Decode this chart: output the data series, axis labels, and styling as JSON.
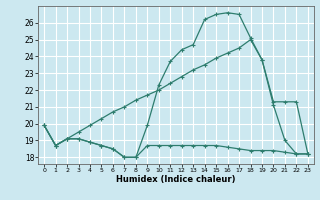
{
  "xlabel": "Humidex (Indice chaleur)",
  "bg_color": "#cce8f0",
  "grid_color": "#ffffff",
  "line_color": "#2e7d6e",
  "xlim": [
    -0.5,
    23.5
  ],
  "ylim": [
    17.6,
    27.0
  ],
  "xticks": [
    0,
    1,
    2,
    3,
    4,
    5,
    6,
    7,
    8,
    9,
    10,
    11,
    12,
    13,
    14,
    15,
    16,
    17,
    18,
    19,
    20,
    21,
    22,
    23
  ],
  "yticks": [
    18,
    19,
    20,
    21,
    22,
    23,
    24,
    25,
    26
  ],
  "series1_x": [
    0,
    1,
    2,
    3,
    4,
    5,
    6,
    7,
    8,
    9,
    10,
    11,
    12,
    13,
    14,
    15,
    16,
    17,
    18,
    19,
    20,
    21,
    22,
    23
  ],
  "series1_y": [
    19.9,
    18.7,
    19.1,
    19.1,
    18.9,
    18.7,
    18.5,
    18.0,
    18.0,
    19.9,
    22.3,
    23.7,
    24.4,
    24.7,
    26.2,
    26.5,
    26.6,
    26.5,
    25.1,
    23.8,
    21.1,
    19.0,
    18.2,
    18.2
  ],
  "series2_x": [
    0,
    1,
    2,
    3,
    4,
    5,
    6,
    7,
    8,
    9,
    10,
    11,
    12,
    13,
    14,
    15,
    16,
    17,
    18,
    19,
    20,
    21,
    22,
    23
  ],
  "series2_y": [
    19.9,
    18.7,
    19.1,
    19.1,
    18.9,
    18.7,
    18.5,
    18.0,
    18.0,
    18.7,
    18.7,
    18.7,
    18.7,
    18.7,
    18.7,
    18.7,
    18.6,
    18.5,
    18.4,
    18.4,
    18.4,
    18.3,
    18.2,
    18.2
  ],
  "series3_x": [
    0,
    1,
    2,
    3,
    4,
    5,
    6,
    7,
    8,
    9,
    10,
    11,
    12,
    13,
    14,
    15,
    16,
    17,
    18,
    19,
    20,
    21,
    22,
    23
  ],
  "series3_y": [
    19.9,
    18.7,
    19.1,
    19.5,
    19.9,
    20.3,
    20.7,
    21.0,
    21.4,
    21.7,
    22.0,
    22.4,
    22.8,
    23.2,
    23.5,
    23.9,
    24.2,
    24.5,
    25.0,
    23.8,
    21.3,
    21.3,
    21.3,
    18.2
  ]
}
